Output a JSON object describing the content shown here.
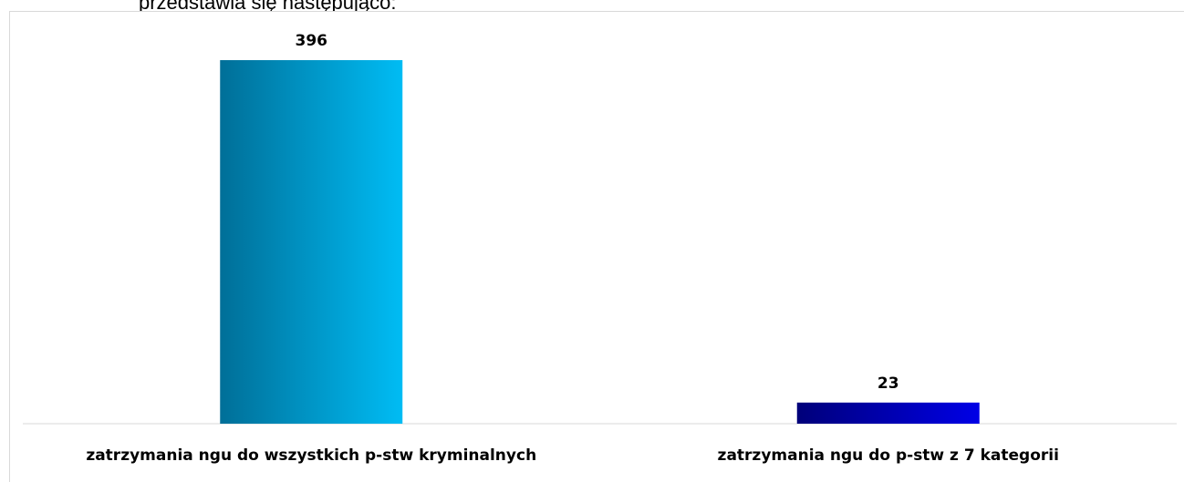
{
  "page_text": "przedstawia się następująco:",
  "chart_data": {
    "type": "bar",
    "categories": [
      "zatrzymania ngu do wszystkich p-stw kryminalnych",
      "zatrzymania ngu do p-stw z 7 kategorii"
    ],
    "values": [
      396,
      23
    ],
    "colors": [
      [
        "#006f98",
        "#00bcf4"
      ],
      [
        "#00007a",
        "#0000e6"
      ]
    ]
  }
}
